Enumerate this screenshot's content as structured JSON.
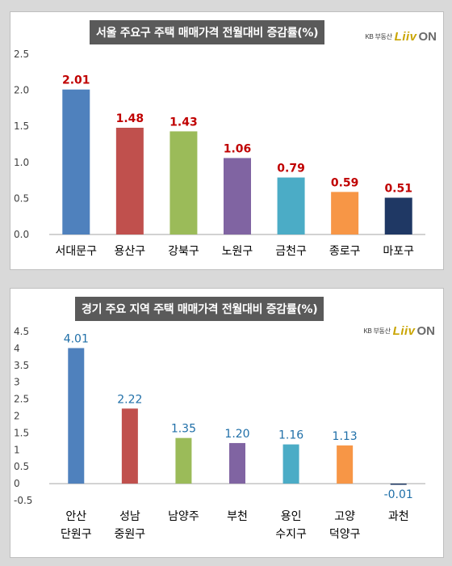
{
  "chart_data": [
    {
      "type": "bar",
      "title": "서울 주요구 주택 매매가격 전월대비 증감률(%)",
      "categories": [
        "서대문구",
        "용산구",
        "강북구",
        "노원구",
        "금천구",
        "종로구",
        "마포구"
      ],
      "values": [
        2.01,
        1.48,
        1.43,
        1.06,
        0.79,
        0.59,
        0.51
      ],
      "value_labels": [
        "2.01",
        "1.48",
        "1.43",
        "1.06",
        "0.79",
        "0.59",
        "0.51"
      ],
      "bar_colors": [
        "#4f81bd",
        "#c0504d",
        "#9bbb59",
        "#8064a2",
        "#4bacc6",
        "#f79646",
        "#1f3864"
      ],
      "yticks": [
        0,
        0.5,
        1,
        1.5,
        2,
        2.5
      ],
      "ytick_labels": [
        "0.0",
        "0.5",
        "1.0",
        "1.5",
        "2.0",
        "2.5"
      ],
      "ylim": [
        0,
        2.5
      ],
      "xlabel": "",
      "ylabel": "",
      "grid": false,
      "label_color": "#c00000"
    },
    {
      "type": "bar",
      "title": "경기 주요 지역 주택 매매가격 전월대비 증감률(%)",
      "categories": [
        [
          "안산",
          "단원구"
        ],
        [
          "성남",
          "중원구"
        ],
        [
          "남양주"
        ],
        [
          "부천"
        ],
        [
          "용인",
          "수지구"
        ],
        [
          "고양",
          "덕양구"
        ],
        [
          "과천"
        ]
      ],
      "values": [
        4.01,
        2.22,
        1.35,
        1.2,
        1.16,
        1.13,
        -0.01
      ],
      "value_labels": [
        "4.01",
        "2.22",
        "1.35",
        "1.20",
        "1.16",
        "1.13",
        "-0.01"
      ],
      "bar_colors": [
        "#4f81bd",
        "#c0504d",
        "#9bbb59",
        "#8064a2",
        "#4bacc6",
        "#f79646",
        "#1f3864"
      ],
      "yticks": [
        -0.5,
        0,
        0.5,
        1,
        1.5,
        2,
        2.5,
        3,
        3.5,
        4,
        4.5
      ],
      "ytick_labels": [
        "-0.5",
        "0",
        "0.5",
        "1",
        "1.5",
        "2",
        "2.5",
        "3",
        "3.5",
        "4",
        "4.5"
      ],
      "ylim": [
        -0.5,
        4.5
      ],
      "xlabel": "",
      "ylabel": "",
      "grid": false,
      "label_color": "#1f6fa8"
    }
  ],
  "brand": {
    "kb": "KB 부동산",
    "liiv": "Liiv",
    "on": "ON"
  }
}
